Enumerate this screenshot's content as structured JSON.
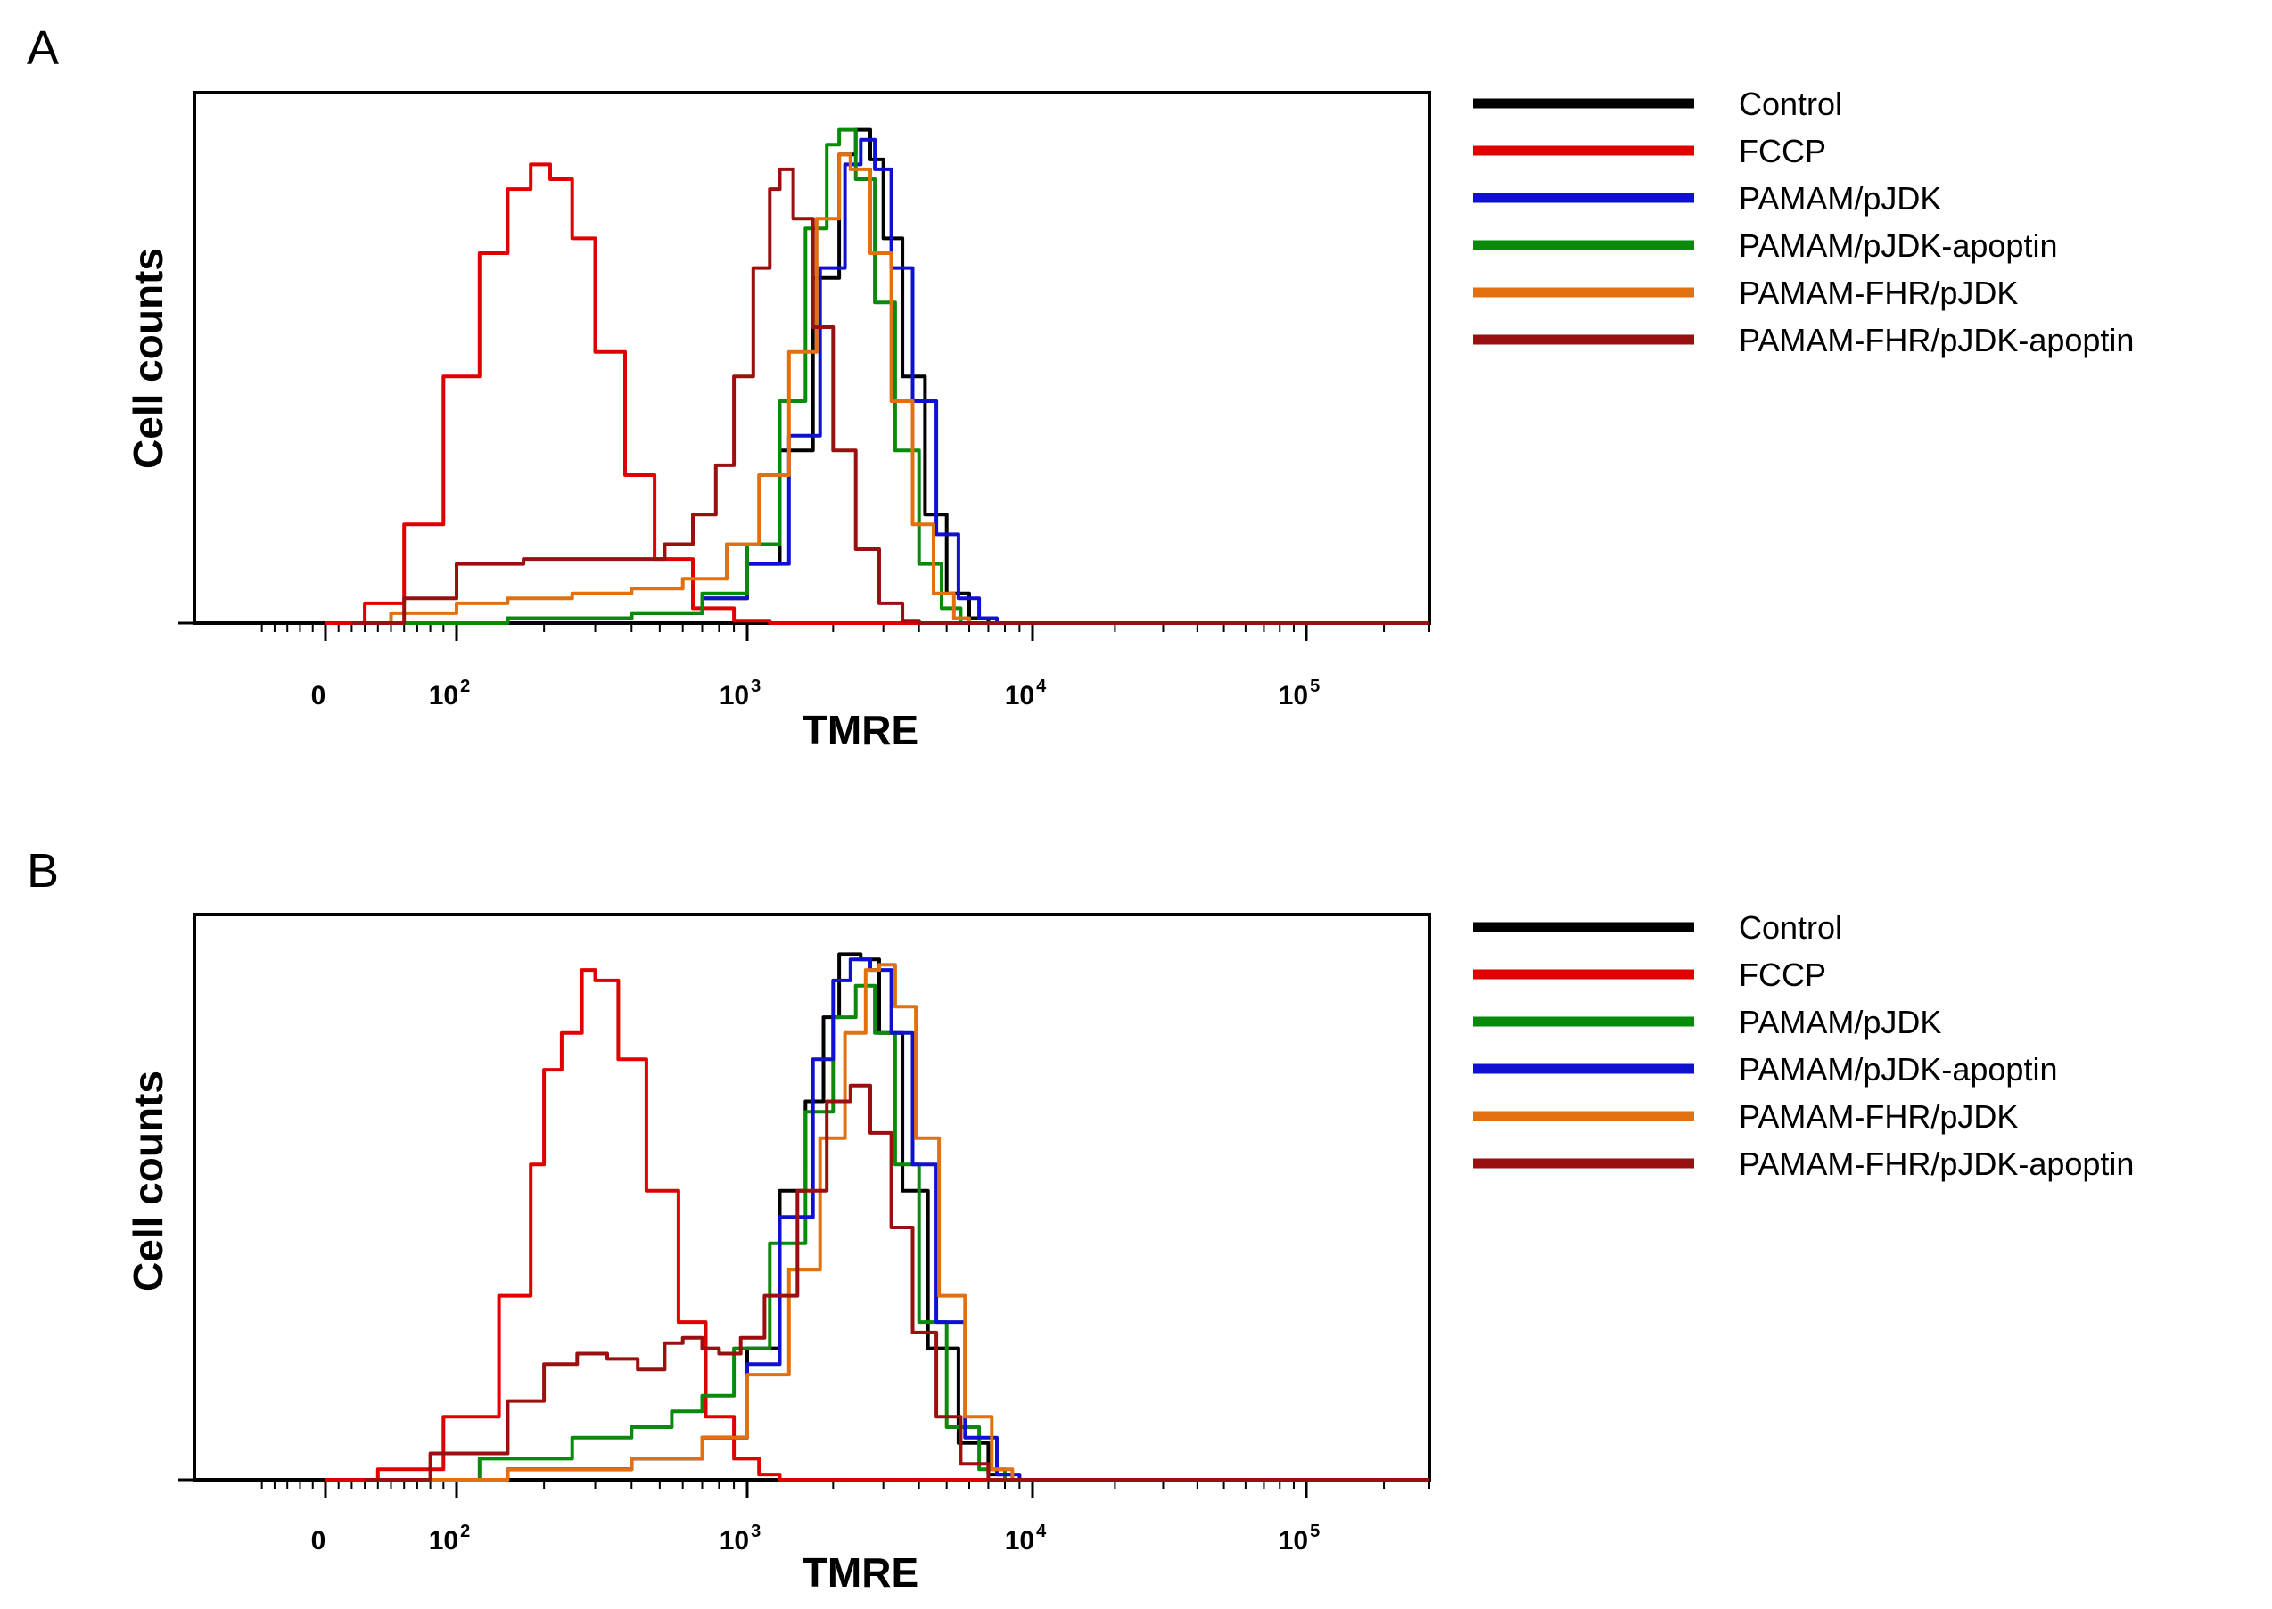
{
  "chart_data": [
    {
      "panel": "A",
      "type": "line",
      "ylabel": "Cell counts",
      "xlabel": "TMRE",
      "xscale": "biexponential",
      "xlim": [
        -200,
        200000
      ],
      "ylim": [
        0,
        1
      ],
      "legend_position": "right",
      "ticks": [
        {
          "value": 0,
          "base": "0",
          "exp": ""
        },
        {
          "value": 100,
          "base": "10",
          "exp": "2"
        },
        {
          "value": 1000,
          "base": "10",
          "exp": "3"
        },
        {
          "value": 10000,
          "base": "10",
          "exp": "4"
        },
        {
          "value": 100000,
          "base": "10",
          "exp": "5"
        }
      ],
      "series": [
        {
          "name": "Control",
          "color": "#000000",
          "points": [
            [
              30,
              0
            ],
            [
              150,
              0.01
            ],
            [
              400,
              0.02
            ],
            [
              700,
              0.05
            ],
            [
              1000,
              0.12
            ],
            [
              1300,
              0.35
            ],
            [
              1700,
              0.7
            ],
            [
              2100,
              0.95
            ],
            [
              2400,
              1.0
            ],
            [
              2700,
              0.94
            ],
            [
              3000,
              0.78
            ],
            [
              3500,
              0.5
            ],
            [
              4200,
              0.22
            ],
            [
              5000,
              0.06
            ],
            [
              6000,
              0.01
            ],
            [
              7000,
              0
            ]
          ]
        },
        {
          "name": "FCCP",
          "color": "#e00000",
          "points": [
            [
              0,
              0
            ],
            [
              30,
              0.04
            ],
            [
              60,
              0.2
            ],
            [
              90,
              0.5
            ],
            [
              120,
              0.75
            ],
            [
              150,
              0.88
            ],
            [
              180,
              0.93
            ],
            [
              210,
              0.9
            ],
            [
              250,
              0.78
            ],
            [
              300,
              0.55
            ],
            [
              380,
              0.3
            ],
            [
              480,
              0.13
            ],
            [
              650,
              0.03
            ],
            [
              900,
              0.005
            ],
            [
              1200,
              0
            ]
          ]
        },
        {
          "name": "PAMAM/pJDK",
          "color": "#1010d0",
          "points": [
            [
              30,
              0
            ],
            [
              150,
              0.01
            ],
            [
              400,
              0.02
            ],
            [
              700,
              0.05
            ],
            [
              1000,
              0.12
            ],
            [
              1400,
              0.38
            ],
            [
              1800,
              0.72
            ],
            [
              2200,
              0.93
            ],
            [
              2500,
              0.98
            ],
            [
              2800,
              0.92
            ],
            [
              3200,
              0.72
            ],
            [
              3800,
              0.45
            ],
            [
              4600,
              0.18
            ],
            [
              5500,
              0.05
            ],
            [
              6500,
              0.01
            ],
            [
              7500,
              0
            ]
          ]
        },
        {
          "name": "PAMAM/pJDK-apoptin",
          "color": "#0a8a0a",
          "points": [
            [
              30,
              0
            ],
            [
              150,
              0.01
            ],
            [
              400,
              0.02
            ],
            [
              700,
              0.06
            ],
            [
              1000,
              0.16
            ],
            [
              1300,
              0.45
            ],
            [
              1600,
              0.8
            ],
            [
              1900,
              0.97
            ],
            [
              2100,
              1.0
            ],
            [
              2400,
              0.9
            ],
            [
              2800,
              0.65
            ],
            [
              3300,
              0.35
            ],
            [
              4000,
              0.12
            ],
            [
              4800,
              0.03
            ],
            [
              5600,
              0
            ]
          ]
        },
        {
          "name": "PAMAM-FHR/pJDK",
          "color": "#e07010",
          "points": [
            [
              20,
              0
            ],
            [
              50,
              0.02
            ],
            [
              100,
              0.04
            ],
            [
              150,
              0.05
            ],
            [
              250,
              0.06
            ],
            [
              400,
              0.07
            ],
            [
              600,
              0.09
            ],
            [
              850,
              0.16
            ],
            [
              1100,
              0.3
            ],
            [
              1400,
              0.55
            ],
            [
              1750,
              0.82
            ],
            [
              2100,
              0.95
            ],
            [
              2300,
              0.92
            ],
            [
              2700,
              0.75
            ],
            [
              3200,
              0.45
            ],
            [
              3800,
              0.2
            ],
            [
              4500,
              0.06
            ],
            [
              5300,
              0.01
            ],
            [
              6000,
              0
            ]
          ]
        },
        {
          "name": "PAMAM-FHR/pJDK-apoptin",
          "color": "#9a1010",
          "points": [
            [
              20,
              0
            ],
            [
              60,
              0.05
            ],
            [
              100,
              0.12
            ],
            [
              130,
              0.12
            ],
            [
              170,
              0.13
            ],
            [
              220,
              0.13
            ],
            [
              300,
              0.13
            ],
            [
              400,
              0.13
            ],
            [
              520,
              0.16
            ],
            [
              650,
              0.22
            ],
            [
              780,
              0.32
            ],
            [
              900,
              0.5
            ],
            [
              1050,
              0.72
            ],
            [
              1200,
              0.88
            ],
            [
              1300,
              0.92
            ],
            [
              1450,
              0.82
            ],
            [
              1700,
              0.6
            ],
            [
              2000,
              0.35
            ],
            [
              2400,
              0.15
            ],
            [
              2900,
              0.04
            ],
            [
              3500,
              0.005
            ],
            [
              4000,
              0
            ]
          ]
        }
      ]
    },
    {
      "panel": "B",
      "type": "line",
      "ylabel": "Cell counts",
      "xlabel": "TMRE",
      "xscale": "biexponential",
      "xlim": [
        -200,
        200000
      ],
      "ylim": [
        0,
        1
      ],
      "legend_position": "right",
      "ticks": [
        {
          "value": 0,
          "base": "0",
          "exp": ""
        },
        {
          "value": 100,
          "base": "10",
          "exp": "2"
        },
        {
          "value": 1000,
          "base": "10",
          "exp": "3"
        },
        {
          "value": 10000,
          "base": "10",
          "exp": "4"
        },
        {
          "value": 100000,
          "base": "10",
          "exp": "5"
        }
      ],
      "series": [
        {
          "name": "Control",
          "color": "#000000",
          "points": [
            [
              40,
              0
            ],
            [
              150,
              0.02
            ],
            [
              400,
              0.04
            ],
            [
              700,
              0.08
            ],
            [
              1000,
              0.25
            ],
            [
              1300,
              0.55
            ],
            [
              1600,
              0.72
            ],
            [
              1850,
              0.88
            ],
            [
              2100,
              1.0
            ],
            [
              2500,
              0.99
            ],
            [
              2900,
              0.85
            ],
            [
              3500,
              0.55
            ],
            [
              4300,
              0.25
            ],
            [
              5500,
              0.07
            ],
            [
              7000,
              0.01
            ],
            [
              8500,
              0
            ]
          ]
        },
        {
          "name": "FCCP",
          "color": "#e00000",
          "points": [
            [
              0,
              0
            ],
            [
              40,
              0.02
            ],
            [
              90,
              0.12
            ],
            [
              140,
              0.35
            ],
            [
              180,
              0.6
            ],
            [
              200,
              0.78
            ],
            [
              230,
              0.85
            ],
            [
              270,
              0.97
            ],
            [
              300,
              0.95
            ],
            [
              360,
              0.8
            ],
            [
              450,
              0.55
            ],
            [
              580,
              0.3
            ],
            [
              720,
              0.12
            ],
            [
              900,
              0.04
            ],
            [
              1100,
              0.01
            ],
            [
              1300,
              0
            ]
          ]
        },
        {
          "name": "PAMAM/pJDK",
          "color": "#0a8a0a",
          "points": [
            [
              40,
              0
            ],
            [
              120,
              0.04
            ],
            [
              250,
              0.08
            ],
            [
              400,
              0.1
            ],
            [
              550,
              0.13
            ],
            [
              700,
              0.16
            ],
            [
              900,
              0.25
            ],
            [
              1200,
              0.45
            ],
            [
              1600,
              0.7
            ],
            [
              2000,
              0.88
            ],
            [
              2400,
              0.94
            ],
            [
              2800,
              0.85
            ],
            [
              3300,
              0.6
            ],
            [
              4000,
              0.3
            ],
            [
              5000,
              0.1
            ],
            [
              6500,
              0.02
            ],
            [
              8000,
              0
            ]
          ]
        },
        {
          "name": "PAMAM/pJDK-apoptin",
          "color": "#1010d0",
          "points": [
            [
              40,
              0
            ],
            [
              150,
              0.02
            ],
            [
              400,
              0.04
            ],
            [
              700,
              0.08
            ],
            [
              1000,
              0.22
            ],
            [
              1300,
              0.5
            ],
            [
              1700,
              0.8
            ],
            [
              2000,
              0.95
            ],
            [
              2300,
              0.99
            ],
            [
              2700,
              0.97
            ],
            [
              3200,
              0.85
            ],
            [
              3800,
              0.6
            ],
            [
              4600,
              0.3
            ],
            [
              5800,
              0.08
            ],
            [
              7500,
              0.01
            ],
            [
              9000,
              0
            ]
          ]
        },
        {
          "name": "PAMAM-FHR/pJDK",
          "color": "#e07010",
          "points": [
            [
              40,
              0
            ],
            [
              150,
              0.02
            ],
            [
              400,
              0.04
            ],
            [
              700,
              0.08
            ],
            [
              1000,
              0.2
            ],
            [
              1400,
              0.4
            ],
            [
              1800,
              0.65
            ],
            [
              2200,
              0.85
            ],
            [
              2600,
              0.97
            ],
            [
              2900,
              0.98
            ],
            [
              3300,
              0.9
            ],
            [
              3900,
              0.65
            ],
            [
              4700,
              0.35
            ],
            [
              5800,
              0.12
            ],
            [
              7200,
              0.02
            ],
            [
              8500,
              0
            ]
          ]
        },
        {
          "name": "PAMAM-FHR/pJDK-apoptin",
          "color": "#9a1010",
          "points": [
            [
              30,
              0
            ],
            [
              80,
              0.05
            ],
            [
              150,
              0.15
            ],
            [
              200,
              0.22
            ],
            [
              260,
              0.24
            ],
            [
              330,
              0.23
            ],
            [
              420,
              0.21
            ],
            [
              520,
              0.26
            ],
            [
              600,
              0.27
            ],
            [
              700,
              0.25
            ],
            [
              800,
              0.24
            ],
            [
              950,
              0.27
            ],
            [
              1150,
              0.35
            ],
            [
              1500,
              0.55
            ],
            [
              1900,
              0.72
            ],
            [
              2300,
              0.75
            ],
            [
              2700,
              0.66
            ],
            [
              3200,
              0.48
            ],
            [
              3800,
              0.28
            ],
            [
              4600,
              0.12
            ],
            [
              5600,
              0.03
            ],
            [
              7000,
              0
            ]
          ]
        }
      ]
    }
  ],
  "panels": [
    {
      "letter": "A"
    },
    {
      "letter": "B"
    }
  ]
}
